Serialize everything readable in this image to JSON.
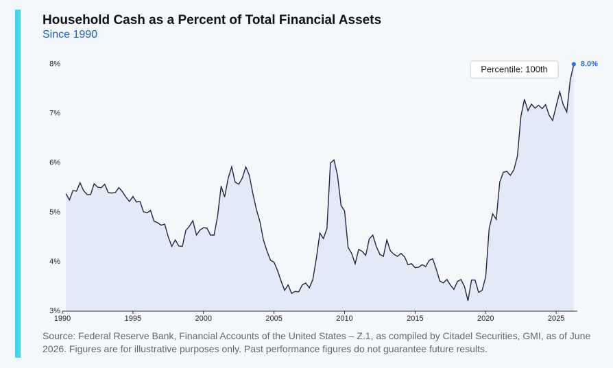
{
  "chart_data": {
    "type": "line",
    "title": "Household Cash as a Percent of Total Financial Assets",
    "subtitle": "Since 1990",
    "source": "Source: Federal Reserve Bank, Financial Accounts of the United States – Z.1, as compiled by Citadel Securities, GMI, as of June 2026. Figures are for illustrative purposes only. Past performance figures do not guarantee future results.",
    "annotation": "Percentile: 100th",
    "highlight": {
      "x": 2026.25,
      "value": 8.0,
      "label": "8.0%"
    },
    "xlim": [
      1990,
      2026.5
    ],
    "xticks": [
      1990,
      1995,
      2000,
      2005,
      2010,
      2015,
      2020,
      2025
    ],
    "ylim": [
      3,
      8.3
    ],
    "yticks": [
      {
        "value": 3,
        "label": "3%"
      },
      {
        "value": 4,
        "label": "4%"
      },
      {
        "value": 5,
        "label": "5%"
      },
      {
        "value": 6,
        "label": "6%"
      },
      {
        "value": 7,
        "label": "7%"
      },
      {
        "value": 8,
        "label": "8%"
      }
    ],
    "color": "#1c2541",
    "fill": "#e2e9f7",
    "x": [
      1990.25,
      1990.5,
      1990.75,
      1991,
      1991.25,
      1991.5,
      1991.75,
      1992,
      1992.25,
      1992.5,
      1992.75,
      1993,
      1993.25,
      1993.5,
      1993.75,
      1994,
      1994.25,
      1994.5,
      1994.75,
      1995,
      1995.25,
      1995.5,
      1995.75,
      1996,
      1996.25,
      1996.5,
      1996.75,
      1997,
      1997.25,
      1997.5,
      1997.75,
      1998,
      1998.25,
      1998.5,
      1998.75,
      1999,
      1999.25,
      1999.5,
      1999.75,
      2000,
      2000.25,
      2000.5,
      2000.75,
      2001,
      2001.25,
      2001.5,
      2001.75,
      2002,
      2002.25,
      2002.5,
      2002.75,
      2003,
      2003.25,
      2003.5,
      2003.75,
      2004,
      2004.25,
      2004.5,
      2004.75,
      2005,
      2005.25,
      2005.5,
      2005.75,
      2006,
      2006.25,
      2006.5,
      2006.75,
      2007,
      2007.25,
      2007.5,
      2007.75,
      2008,
      2008.25,
      2008.5,
      2008.75,
      2009,
      2009.25,
      2009.5,
      2009.75,
      2010,
      2010.25,
      2010.5,
      2010.75,
      2011,
      2011.25,
      2011.5,
      2011.75,
      2012,
      2012.25,
      2012.5,
      2012.75,
      2013,
      2013.25,
      2013.5,
      2013.75,
      2014,
      2014.25,
      2014.5,
      2014.75,
      2015,
      2015.25,
      2015.5,
      2015.75,
      2016,
      2016.25,
      2016.5,
      2016.75,
      2017,
      2017.25,
      2017.5,
      2017.75,
      2018,
      2018.25,
      2018.5,
      2018.75,
      2019,
      2019.25,
      2019.5,
      2019.75,
      2020,
      2020.25,
      2020.5,
      2020.75,
      2021,
      2021.25,
      2021.5,
      2021.75,
      2022,
      2022.25,
      2022.5,
      2022.75,
      2023,
      2023.25,
      2023.5,
      2023.75,
      2024,
      2024.25,
      2024.5,
      2024.75,
      2025,
      2025.25,
      2025.5,
      2025.75,
      2026,
      2026.25
    ],
    "values": [
      5.38,
      5.25,
      5.44,
      5.43,
      5.6,
      5.44,
      5.36,
      5.36,
      5.58,
      5.51,
      5.5,
      5.57,
      5.4,
      5.39,
      5.4,
      5.5,
      5.42,
      5.31,
      5.22,
      5.32,
      5.21,
      5.22,
      5.01,
      4.99,
      5.04,
      4.82,
      4.79,
      4.74,
      4.76,
      4.51,
      4.31,
      4.44,
      4.32,
      4.31,
      4.63,
      4.72,
      4.83,
      4.54,
      4.64,
      4.69,
      4.68,
      4.54,
      4.54,
      4.92,
      5.53,
      5.31,
      5.69,
      5.92,
      5.61,
      5.57,
      5.69,
      5.92,
      5.75,
      5.38,
      5.06,
      4.81,
      4.44,
      4.22,
      4.03,
      3.99,
      3.82,
      3.61,
      3.42,
      3.53,
      3.36,
      3.4,
      3.39,
      3.53,
      3.57,
      3.47,
      3.64,
      4.07,
      4.58,
      4.47,
      4.67,
      6.0,
      6.06,
      5.75,
      5.14,
      5.03,
      4.29,
      4.17,
      3.96,
      4.25,
      4.21,
      4.13,
      4.46,
      4.54,
      4.31,
      4.15,
      4.11,
      4.44,
      4.22,
      4.15,
      4.11,
      4.17,
      4.1,
      3.94,
      3.96,
      3.88,
      3.89,
      3.94,
      3.9,
      4.03,
      4.06,
      3.85,
      3.61,
      3.57,
      3.64,
      3.53,
      3.44,
      3.6,
      3.64,
      3.5,
      3.21,
      3.63,
      3.63,
      3.38,
      3.42,
      3.69,
      4.67,
      4.97,
      4.86,
      5.61,
      5.81,
      5.83,
      5.75,
      5.86,
      6.14,
      6.94,
      7.29,
      7.06,
      7.19,
      7.11,
      7.17,
      7.1,
      7.18,
      6.97,
      6.86,
      7.15,
      7.44,
      7.18,
      7.03,
      7.69,
      8.0
    ]
  }
}
